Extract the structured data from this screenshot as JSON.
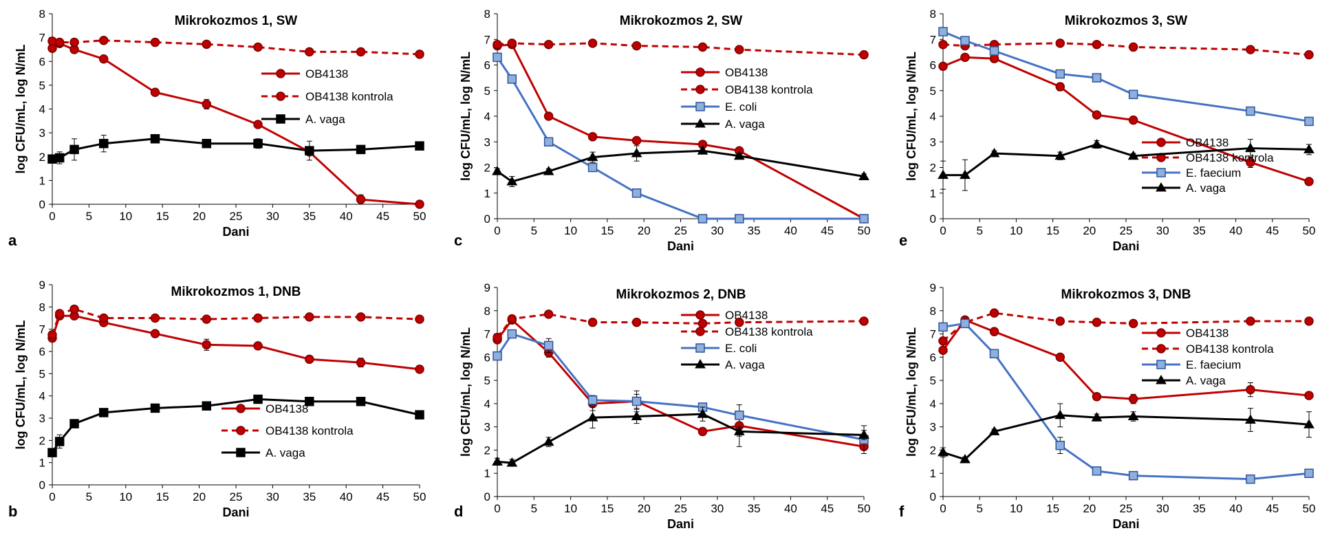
{
  "figure": {
    "panel_letters": [
      "a",
      "b",
      "c",
      "d",
      "e",
      "f"
    ]
  },
  "colors": {
    "red": "#c00000",
    "blue": "#4472c4",
    "black": "#000000",
    "red_marker_fill": "#c00000",
    "blue_marker_fill": "#8fb0df"
  },
  "chart_data": [
    {
      "id": "a",
      "type": "line",
      "title": "Mikrokozmos 1, SW",
      "xlabel": "Dani",
      "ylabel": "log CFU/mL, log N/mL",
      "xlim": [
        0,
        50
      ],
      "ylim": [
        0,
        8
      ],
      "xticks": [
        0,
        5,
        10,
        15,
        20,
        25,
        30,
        35,
        40,
        45,
        50
      ],
      "yticks": [
        0,
        1,
        2,
        3,
        4,
        5,
        6,
        7,
        8
      ],
      "legend_position": "top-right",
      "series": [
        {
          "name": "OB4138",
          "color": "red",
          "style": "solid",
          "marker": "circle",
          "x": [
            0,
            1,
            3,
            7,
            14,
            21,
            28,
            35,
            42,
            50
          ],
          "y": [
            6.55,
            6.75,
            6.5,
            6.1,
            4.7,
            4.2,
            3.35,
            2.2,
            0.2,
            0.0
          ],
          "err": [
            0.1,
            0.05,
            0.1,
            0.1,
            0.1,
            0.2,
            0.1,
            0.1,
            0.2,
            0.0
          ]
        },
        {
          "name": "OB4138 kontrola",
          "color": "red",
          "style": "dashed",
          "marker": "circle",
          "x": [
            0,
            1,
            3,
            7,
            14,
            21,
            28,
            35,
            42,
            50
          ],
          "y": [
            6.85,
            6.8,
            6.8,
            6.88,
            6.8,
            6.72,
            6.6,
            6.4,
            6.4,
            6.3
          ],
          "err": [
            0.05,
            0.05,
            0.05,
            0.05,
            0.05,
            0.05,
            0.05,
            0.05,
            0.05,
            0.05
          ]
        },
        {
          "name": "A. vaga",
          "color": "black",
          "style": "solid",
          "marker": "square",
          "x": [
            0,
            1,
            3,
            7,
            14,
            21,
            28,
            35,
            42,
            50
          ],
          "y": [
            1.9,
            1.95,
            2.3,
            2.55,
            2.75,
            2.55,
            2.55,
            2.25,
            2.3,
            2.45
          ],
          "err": [
            0.1,
            0.25,
            0.45,
            0.35,
            0.1,
            0.1,
            0.2,
            0.4,
            0.15,
            0.1
          ]
        }
      ]
    },
    {
      "id": "b",
      "type": "line",
      "title": "Mikrokozmos 1, DNB",
      "xlabel": "Dani",
      "ylabel": "log CFU/mL, log N/mL",
      "xlim": [
        0,
        50
      ],
      "ylim": [
        0,
        9
      ],
      "xticks": [
        0,
        5,
        10,
        15,
        20,
        25,
        30,
        35,
        40,
        45,
        50
      ],
      "yticks": [
        0,
        1,
        2,
        3,
        4,
        5,
        6,
        7,
        8,
        9
      ],
      "legend_position": "bottom-right",
      "series": [
        {
          "name": "OB4138",
          "color": "red",
          "style": "solid",
          "marker": "circle",
          "x": [
            0,
            1,
            3,
            7,
            14,
            21,
            28,
            35,
            42,
            50
          ],
          "y": [
            6.6,
            7.6,
            7.6,
            7.3,
            6.8,
            6.3,
            6.25,
            5.65,
            5.5,
            5.2
          ],
          "err": [
            0.1,
            0.1,
            0.1,
            0.1,
            0.05,
            0.25,
            0.15,
            0.05,
            0.2,
            0.1
          ]
        },
        {
          "name": "OB4138 kontrola",
          "color": "red",
          "style": "dashed",
          "marker": "circle",
          "x": [
            0,
            1,
            3,
            7,
            14,
            21,
            28,
            35,
            42,
            50
          ],
          "y": [
            6.75,
            7.7,
            7.9,
            7.5,
            7.5,
            7.45,
            7.5,
            7.55,
            7.55,
            7.45
          ],
          "err": [
            0.05,
            0.05,
            0.05,
            0.05,
            0.05,
            0.05,
            0.05,
            0.05,
            0.05,
            0.05
          ]
        },
        {
          "name": "A. vaga",
          "color": "black",
          "style": "solid",
          "marker": "square",
          "x": [
            0,
            1,
            3,
            7,
            14,
            21,
            28,
            35,
            42,
            50
          ],
          "y": [
            1.45,
            1.95,
            2.75,
            3.25,
            3.45,
            3.55,
            3.85,
            3.75,
            3.75,
            3.15
          ],
          "err": [
            0.1,
            0.3,
            0.1,
            0.1,
            0.05,
            0.05,
            0.05,
            0.05,
            0.05,
            0.1
          ]
        }
      ]
    },
    {
      "id": "c",
      "type": "line",
      "title": "Mikrokozmos 2, SW",
      "xlabel": "Dani",
      "ylabel": "log CFU/mL, log N/mL",
      "xlim": [
        0,
        50
      ],
      "ylim": [
        0,
        8
      ],
      "xticks": [
        0,
        5,
        10,
        15,
        20,
        25,
        30,
        35,
        40,
        45,
        50
      ],
      "yticks": [
        0,
        1,
        2,
        3,
        4,
        5,
        6,
        7,
        8
      ],
      "legend_position": "top-right",
      "series": [
        {
          "name": "OB4138",
          "color": "red",
          "style": "solid",
          "marker": "circle",
          "x": [
            0,
            2,
            7,
            13,
            19,
            28,
            33,
            50
          ],
          "y": [
            6.75,
            6.8,
            4.0,
            3.2,
            3.05,
            2.9,
            2.65,
            0.0
          ],
          "err": [
            0.1,
            0.1,
            0.1,
            0.1,
            0.05,
            0.05,
            0.1,
            0.0
          ]
        },
        {
          "name": "OB4138 kontrola",
          "color": "red",
          "style": "dashed",
          "marker": "circle",
          "x": [
            0,
            2,
            7,
            13,
            19,
            28,
            33,
            50
          ],
          "y": [
            6.8,
            6.85,
            6.8,
            6.85,
            6.75,
            6.7,
            6.6,
            6.4
          ],
          "err": [
            0.05,
            0.05,
            0.05,
            0.05,
            0.05,
            0.05,
            0.05,
            0.05
          ]
        },
        {
          "name": "E. coli",
          "color": "blue",
          "style": "solid",
          "marker": "square",
          "x": [
            0,
            2,
            7,
            13,
            19,
            28,
            33,
            50
          ],
          "y": [
            6.3,
            5.45,
            3.0,
            2.0,
            1.0,
            0.0,
            0.0,
            0.0
          ],
          "err": [
            0.05,
            0.05,
            0.05,
            0.05,
            0.05,
            0.0,
            0.0,
            0.0
          ]
        },
        {
          "name": "A. vaga",
          "color": "black",
          "style": "solid",
          "marker": "triangle",
          "x": [
            0,
            2,
            7,
            13,
            19,
            28,
            33,
            50
          ],
          "y": [
            1.85,
            1.45,
            1.85,
            2.4,
            2.55,
            2.65,
            2.45,
            1.65
          ],
          "err": [
            0.1,
            0.2,
            0.1,
            0.2,
            0.3,
            0.1,
            0.1,
            0.1
          ]
        }
      ]
    },
    {
      "id": "d",
      "type": "line",
      "title": "Mikrokozmos 2, DNB",
      "xlabel": "Dani",
      "ylabel": "log CFU/mL, log N/mL",
      "xlim": [
        0,
        50
      ],
      "ylim": [
        0,
        9
      ],
      "xticks": [
        0,
        5,
        10,
        15,
        20,
        25,
        30,
        35,
        40,
        45,
        50
      ],
      "yticks": [
        0,
        1,
        2,
        3,
        4,
        5,
        6,
        7,
        8,
        9
      ],
      "legend_position": "top-right",
      "series": [
        {
          "name": "OB4138",
          "color": "red",
          "style": "solid",
          "marker": "circle",
          "x": [
            0,
            2,
            7,
            13,
            19,
            28,
            33,
            50
          ],
          "y": [
            6.75,
            7.6,
            6.2,
            4.0,
            4.1,
            2.8,
            3.05,
            2.15
          ],
          "err": [
            0.1,
            0.15,
            0.2,
            0.3,
            0.3,
            0.1,
            0.9,
            0.1
          ]
        },
        {
          "name": "OB4138 kontrola",
          "color": "red",
          "style": "dashed",
          "marker": "circle",
          "x": [
            0,
            2,
            7,
            13,
            19,
            28,
            33,
            50
          ],
          "y": [
            6.85,
            7.65,
            7.85,
            7.5,
            7.5,
            7.45,
            7.5,
            7.55
          ],
          "err": [
            0.05,
            0.05,
            0.05,
            0.05,
            0.05,
            0.05,
            0.05,
            0.05
          ]
        },
        {
          "name": "E. coli",
          "color": "blue",
          "style": "solid",
          "marker": "square",
          "x": [
            0,
            2,
            7,
            13,
            19,
            28,
            33,
            50
          ],
          "y": [
            6.05,
            7.0,
            6.5,
            4.15,
            4.1,
            3.85,
            3.5,
            2.45
          ],
          "err": [
            0.1,
            0.1,
            0.3,
            0.2,
            0.45,
            0.1,
            0.1,
            0.6
          ]
        },
        {
          "name": "A. vaga",
          "color": "black",
          "style": "solid",
          "marker": "triangle",
          "x": [
            0,
            2,
            7,
            13,
            19,
            28,
            33,
            50
          ],
          "y": [
            1.5,
            1.45,
            2.35,
            3.4,
            3.45,
            3.55,
            2.8,
            2.65
          ],
          "err": [
            0.15,
            0.15,
            0.2,
            0.45,
            0.3,
            0.3,
            0.2,
            0.2
          ]
        }
      ]
    },
    {
      "id": "e",
      "type": "line",
      "title": "Mikrokozmos 3, SW",
      "xlabel": "Dani",
      "ylabel": "log CFU/mL, log N/mL",
      "xlim": [
        0,
        50
      ],
      "ylim": [
        0,
        8
      ],
      "xticks": [
        0,
        5,
        10,
        15,
        20,
        25,
        30,
        35,
        40,
        45,
        50
      ],
      "yticks": [
        0,
        1,
        2,
        3,
        4,
        5,
        6,
        7,
        8
      ],
      "legend_position": "bottom-right",
      "series": [
        {
          "name": "OB4138",
          "color": "red",
          "style": "solid",
          "marker": "circle",
          "x": [
            0,
            3,
            7,
            16,
            21,
            26,
            42,
            50
          ],
          "y": [
            5.95,
            6.3,
            6.25,
            5.15,
            4.05,
            3.85,
            2.2,
            1.45
          ],
          "err": [
            0.1,
            0.1,
            0.1,
            0.15,
            0.1,
            0.1,
            0.2,
            0.1
          ]
        },
        {
          "name": "OB4138 kontrola",
          "color": "red",
          "style": "dashed",
          "marker": "circle",
          "x": [
            0,
            3,
            7,
            16,
            21,
            26,
            42,
            50
          ],
          "y": [
            6.8,
            6.75,
            6.8,
            6.85,
            6.8,
            6.7,
            6.6,
            6.4
          ],
          "err": [
            0.05,
            0.05,
            0.05,
            0.05,
            0.05,
            0.05,
            0.05,
            0.05
          ]
        },
        {
          "name": "E. faecium",
          "color": "blue",
          "style": "solid",
          "marker": "square",
          "x": [
            0,
            3,
            7,
            16,
            21,
            26,
            42,
            50
          ],
          "y": [
            7.3,
            6.95,
            6.55,
            5.65,
            5.5,
            4.85,
            4.2,
            3.8
          ],
          "err": [
            0.1,
            0.1,
            0.1,
            0.1,
            0.1,
            0.1,
            0.1,
            0.1
          ]
        },
        {
          "name": "A. vaga",
          "color": "black",
          "style": "solid",
          "marker": "triangle",
          "x": [
            0,
            3,
            7,
            16,
            21,
            26,
            42,
            50
          ],
          "y": [
            1.7,
            1.7,
            2.55,
            2.45,
            2.9,
            2.45,
            2.75,
            2.7
          ],
          "err": [
            0.55,
            0.6,
            0.1,
            0.15,
            0.15,
            0.1,
            0.35,
            0.2
          ]
        }
      ]
    },
    {
      "id": "f",
      "type": "line",
      "title": "Mikrokozmos 3, DNB",
      "xlabel": "Dani",
      "ylabel": "log CFU/mL, log N/mL",
      "xlim": [
        0,
        50
      ],
      "ylim": [
        0,
        9
      ],
      "xticks": [
        0,
        5,
        10,
        15,
        20,
        25,
        30,
        35,
        40,
        45,
        50
      ],
      "yticks": [
        0,
        1,
        2,
        3,
        4,
        5,
        6,
        7,
        8,
        9
      ],
      "legend_position": "top-right",
      "series": [
        {
          "name": "OB4138",
          "color": "red",
          "style": "solid",
          "marker": "circle",
          "x": [
            0,
            3,
            7,
            16,
            21,
            26,
            42,
            50
          ],
          "y": [
            6.3,
            7.6,
            7.1,
            6.0,
            4.3,
            4.2,
            4.6,
            4.35
          ],
          "err": [
            0.1,
            0.1,
            0.1,
            0.1,
            0.15,
            0.2,
            0.3,
            0.1
          ]
        },
        {
          "name": "OB4138 kontrola",
          "color": "red",
          "style": "dashed",
          "marker": "circle",
          "x": [
            0,
            3,
            7,
            16,
            21,
            26,
            42,
            50
          ],
          "y": [
            6.7,
            7.5,
            7.9,
            7.55,
            7.5,
            7.45,
            7.55,
            7.55
          ],
          "err": [
            0.05,
            0.05,
            0.05,
            0.05,
            0.05,
            0.05,
            0.05,
            0.05
          ]
        },
        {
          "name": "E. faecium",
          "color": "blue",
          "style": "solid",
          "marker": "square",
          "x": [
            0,
            3,
            7,
            16,
            21,
            26,
            42,
            50
          ],
          "y": [
            7.3,
            7.45,
            6.15,
            2.2,
            1.1,
            0.9,
            0.75,
            1.0
          ],
          "err": [
            0.1,
            0.1,
            0.1,
            0.35,
            0.1,
            0.1,
            0.1,
            0.1
          ]
        },
        {
          "name": "A. vaga",
          "color": "black",
          "style": "solid",
          "marker": "triangle",
          "x": [
            0,
            3,
            7,
            16,
            21,
            26,
            42,
            50
          ],
          "y": [
            1.9,
            1.6,
            2.8,
            3.5,
            3.4,
            3.45,
            3.3,
            3.1
          ],
          "err": [
            0.2,
            0.1,
            0.1,
            0.5,
            0.15,
            0.2,
            0.5,
            0.55
          ]
        }
      ]
    }
  ]
}
